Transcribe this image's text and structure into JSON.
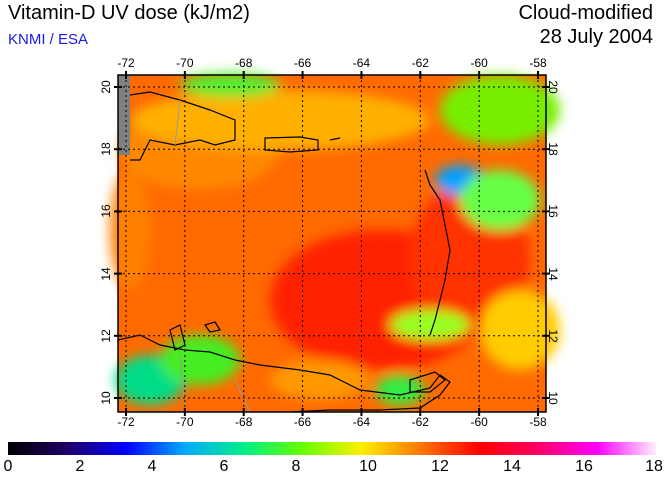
{
  "header": {
    "title": "Vitamin-D UV dose (kJ/m2)",
    "credit": "KNMI / ESA",
    "product": "Cloud-modified",
    "date": "28 July 2004"
  },
  "map": {
    "lon_ticks": [
      "-72",
      "-70",
      "-68",
      "-66",
      "-64",
      "-62",
      "-60",
      "-58"
    ],
    "lat_ticks": [
      "20",
      "18",
      "16",
      "14",
      "12",
      "10"
    ]
  },
  "colorbar": {
    "labels": [
      "0",
      "2",
      "4",
      "6",
      "8",
      "10",
      "12",
      "14",
      "16",
      "18"
    ],
    "colors": [
      "#000000",
      "#200066",
      "#0000ff",
      "#00aaff",
      "#00ee88",
      "#66ff00",
      "#ffee00",
      "#ff7700",
      "#ff0000",
      "#ff0066",
      "#ff00ff",
      "#ffeeff"
    ]
  }
}
